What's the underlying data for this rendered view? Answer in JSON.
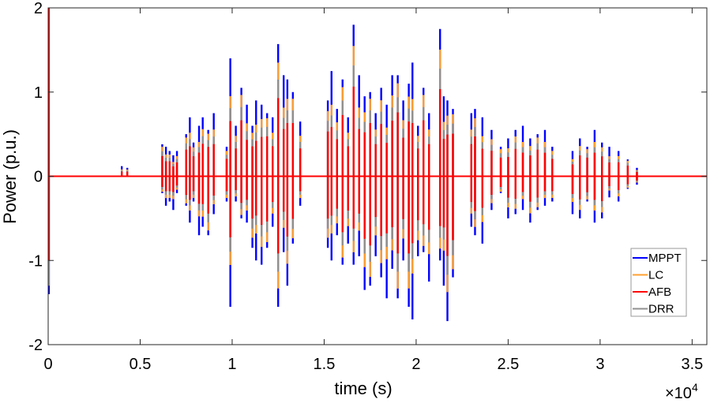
{
  "chart_data": {
    "type": "line",
    "title": "",
    "xlabel": "time (s)",
    "ylabel": "Power (p.u.)",
    "x_multiplier_label": "×10",
    "x_multiplier_exponent": "4",
    "xlim": [
      0,
      35800
    ],
    "ylim": [
      -2,
      2
    ],
    "xticks": [
      0,
      5000,
      10000,
      15000,
      20000,
      25000,
      30000,
      35000
    ],
    "xtick_labels": [
      "0",
      "0.5",
      "1",
      "1.5",
      "2",
      "2.5",
      "3",
      "3.5"
    ],
    "yticks": [
      -2,
      -1,
      0,
      1,
      2
    ],
    "ytick_labels": [
      "-2",
      "-1",
      "0",
      "1",
      "2"
    ],
    "grid": false,
    "legend_position": "bottom-right",
    "series": [
      {
        "name": "MPPT",
        "color": "#0000ff",
        "amplitude_ratio_to_MPPT": 1.0
      },
      {
        "name": "LC",
        "color": "#ffa030",
        "amplitude_ratio_to_MPPT": 0.8
      },
      {
        "name": "DRR",
        "color": "#909090",
        "amplitude_ratio_to_MPPT": 0.68
      },
      {
        "name": "AFB",
        "color": "#ff0000",
        "amplitude_ratio_to_MPPT": 0.55
      }
    ],
    "legend_order": [
      "MPPT",
      "LC",
      "AFB",
      "DRR"
    ],
    "initial_transient": {
      "t": 0,
      "MPPT": [
        -1.4,
        0
      ],
      "LC": [
        -1.0,
        0
      ],
      "DRR": [
        -1.3,
        0
      ],
      "AFB": [
        -1.0,
        2.0
      ]
    },
    "spikes_columns": [
      "t_seconds",
      "MPPT_max",
      "MPPT_min"
    ],
    "spikes": [
      [
        4000,
        0.12,
        0
      ],
      [
        4300,
        0.1,
        0
      ],
      [
        6200,
        0.38,
        -0.2
      ],
      [
        6400,
        0.35,
        -0.35
      ],
      [
        6600,
        0.3,
        -0.3
      ],
      [
        6800,
        0.25,
        -0.4
      ],
      [
        7000,
        0.3,
        -0.2
      ],
      [
        7500,
        0.5,
        -0.35
      ],
      [
        7700,
        0.7,
        -0.55
      ],
      [
        7900,
        0.4,
        -0.3
      ],
      [
        8200,
        0.6,
        -0.7
      ],
      [
        8400,
        0.7,
        -0.6
      ],
      [
        8700,
        0.55,
        -0.7
      ],
      [
        9000,
        0.75,
        -0.45
      ],
      [
        9700,
        0.35,
        -0.3
      ],
      [
        9900,
        1.4,
        -1.55
      ],
      [
        10200,
        0.6,
        -0.3
      ],
      [
        10500,
        1.05,
        -0.5
      ],
      [
        10800,
        0.85,
        -0.55
      ],
      [
        11100,
        0.6,
        -0.85
      ],
      [
        11300,
        0.9,
        -1.0
      ],
      [
        11600,
        0.85,
        -1.05
      ],
      [
        11900,
        0.75,
        -0.85
      ],
      [
        12200,
        0.7,
        -0.6
      ],
      [
        12500,
        1.57,
        -1.55
      ],
      [
        12800,
        1.2,
        -0.9
      ],
      [
        13000,
        1.15,
        -1.3
      ],
      [
        13300,
        1.0,
        -0.8
      ],
      [
        13700,
        0.65,
        -0.35
      ],
      [
        15200,
        0.9,
        -0.85
      ],
      [
        15400,
        1.25,
        -1.0
      ],
      [
        15700,
        0.8,
        -0.7
      ],
      [
        16000,
        1.15,
        -1.05
      ],
      [
        16300,
        0.7,
        -0.8
      ],
      [
        16600,
        1.8,
        -1.05
      ],
      [
        16900,
        1.2,
        -0.95
      ],
      [
        17200,
        0.95,
        -1.35
      ],
      [
        17500,
        1.0,
        -1.3
      ],
      [
        17800,
        0.75,
        -0.95
      ],
      [
        18100,
        1.05,
        -1.2
      ],
      [
        18400,
        0.85,
        -1.45
      ],
      [
        18700,
        1.2,
        -1.1
      ],
      [
        19000,
        1.2,
        -1.45
      ],
      [
        19300,
        0.9,
        -1.0
      ],
      [
        19600,
        1.1,
        -1.55
      ],
      [
        19800,
        1.35,
        -1.7
      ],
      [
        20100,
        0.6,
        -0.95
      ],
      [
        20400,
        1.05,
        -0.9
      ],
      [
        20700,
        0.75,
        -1.25
      ],
      [
        21300,
        1.75,
        -1.0
      ],
      [
        21500,
        0.95,
        -1.3
      ],
      [
        21700,
        0.9,
        -1.72
      ],
      [
        22000,
        0.8,
        -1.2
      ],
      [
        23000,
        0.75,
        -0.6
      ],
      [
        23200,
        0.8,
        -0.7
      ],
      [
        23600,
        0.7,
        -0.8
      ],
      [
        24100,
        0.55,
        -0.4
      ],
      [
        24600,
        0.35,
        -0.2
      ],
      [
        25000,
        0.45,
        -0.5
      ],
      [
        25400,
        0.55,
        -0.45
      ],
      [
        25800,
        0.6,
        -0.4
      ],
      [
        26200,
        0.45,
        -0.55
      ],
      [
        26600,
        0.5,
        -0.4
      ],
      [
        27000,
        0.55,
        -0.35
      ],
      [
        27400,
        0.35,
        -0.3
      ],
      [
        28500,
        0.3,
        -0.45
      ],
      [
        28900,
        0.45,
        -0.5
      ],
      [
        29300,
        0.35,
        -0.3
      ],
      [
        29700,
        0.55,
        -0.55
      ],
      [
        30100,
        0.4,
        -0.5
      ],
      [
        30500,
        0.35,
        -0.25
      ],
      [
        31000,
        0.3,
        -0.3
      ],
      [
        31500,
        0.2,
        -0.15
      ],
      [
        32000,
        0.1,
        -0.1
      ]
    ]
  }
}
